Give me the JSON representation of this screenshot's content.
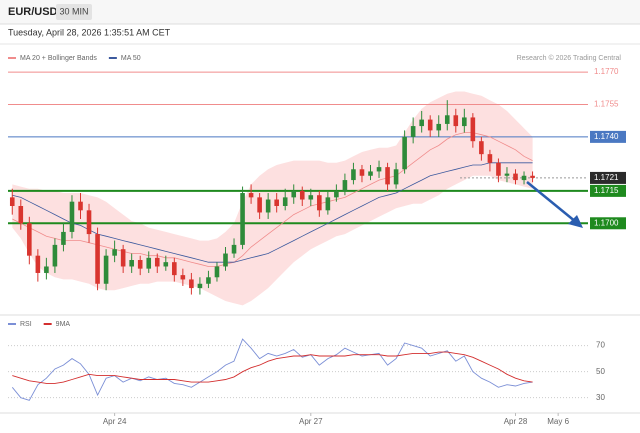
{
  "header": {
    "symbol": "EUR/USD",
    "timeframe": "30 MIN",
    "timestamp": "Tuesday, April 28, 2026 1:35:51 AM CET"
  },
  "chart_data": [
    {
      "type": "candlestick",
      "credit": "Research © 2026 Trading Central",
      "up_color": "#2e8b3a",
      "down_color": "#d9352f",
      "xlim": [
        -0.5,
        67.5
      ],
      "ylim": [
        1.1658,
        1.1783
      ],
      "open": [
        1.1712,
        1.1708,
        1.17,
        1.1685,
        1.1677,
        1.168,
        1.169,
        1.1696,
        1.171,
        1.1706,
        1.1695,
        1.1672,
        1.1685,
        1.1688,
        1.168,
        1.1683,
        1.1679,
        1.1684,
        1.168,
        1.1682,
        1.1676,
        1.1674,
        1.167,
        1.1672,
        1.1675,
        1.168,
        1.1686,
        1.169,
        1.1714,
        1.1712,
        1.1705,
        1.1711,
        1.1708,
        1.1712,
        1.1715,
        1.1711,
        1.1713,
        1.1706,
        1.1712,
        1.1715,
        1.172,
        1.1725,
        1.1722,
        1.1724,
        1.1726,
        1.1718,
        1.1725,
        1.174,
        1.1745,
        1.1748,
        1.1743,
        1.1746,
        1.175,
        1.1745,
        1.1749,
        1.1738,
        1.1732,
        1.1728,
        1.1722,
        1.1723,
        1.172,
        1.1722
      ],
      "high": [
        1.1716,
        1.1711,
        1.1703,
        1.1688,
        1.1684,
        1.1693,
        1.17,
        1.1713,
        1.1714,
        1.1709,
        1.1698,
        1.1688,
        1.1692,
        1.169,
        1.1686,
        1.1685,
        1.1687,
        1.1686,
        1.1685,
        1.1684,
        1.1679,
        1.1677,
        1.1675,
        1.1678,
        1.1682,
        1.1689,
        1.1693,
        1.1717,
        1.1718,
        1.1714,
        1.1714,
        1.1714,
        1.1716,
        1.1718,
        1.1717,
        1.1716,
        1.1715,
        1.1715,
        1.1718,
        1.1723,
        1.1728,
        1.1727,
        1.1727,
        1.1729,
        1.1728,
        1.1728,
        1.1743,
        1.1749,
        1.1752,
        1.175,
        1.175,
        1.1757,
        1.1753,
        1.1753,
        1.1751,
        1.174,
        1.1734,
        1.173,
        1.1726,
        1.1725,
        1.1724,
        1.1724
      ],
      "low": [
        1.1704,
        1.1697,
        1.1681,
        1.1673,
        1.1674,
        1.1677,
        1.1687,
        1.1693,
        1.1702,
        1.1691,
        1.1669,
        1.1669,
        1.1682,
        1.1677,
        1.1677,
        1.1676,
        1.1677,
        1.1677,
        1.1678,
        1.1673,
        1.1671,
        1.1667,
        1.1667,
        1.167,
        1.1673,
        1.1678,
        1.1684,
        1.1688,
        1.1709,
        1.1702,
        1.1702,
        1.1705,
        1.1706,
        1.1709,
        1.1708,
        1.1708,
        1.1703,
        1.1704,
        1.171,
        1.1713,
        1.1718,
        1.1719,
        1.172,
        1.1721,
        1.1715,
        1.1716,
        1.1723,
        1.1737,
        1.1742,
        1.174,
        1.174,
        1.1743,
        1.1742,
        1.1742,
        1.1735,
        1.1729,
        1.1724,
        1.1719,
        1.1719,
        1.1718,
        1.1718,
        1.1719
      ],
      "close": [
        1.1708,
        1.17,
        1.1685,
        1.1677,
        1.168,
        1.169,
        1.1696,
        1.171,
        1.1706,
        1.1695,
        1.1672,
        1.1685,
        1.1688,
        1.168,
        1.1683,
        1.1679,
        1.1684,
        1.168,
        1.1682,
        1.1676,
        1.1674,
        1.167,
        1.1672,
        1.1675,
        1.168,
        1.1686,
        1.169,
        1.1714,
        1.1712,
        1.1705,
        1.1711,
        1.1708,
        1.1712,
        1.1715,
        1.1711,
        1.1713,
        1.1706,
        1.1712,
        1.1715,
        1.172,
        1.1725,
        1.1722,
        1.1724,
        1.1726,
        1.1718,
        1.1725,
        1.174,
        1.1745,
        1.1748,
        1.1743,
        1.1746,
        1.175,
        1.1745,
        1.1749,
        1.1738,
        1.1732,
        1.1728,
        1.1722,
        1.1723,
        1.172,
        1.1722,
        1.1721
      ],
      "overlays": [
        {
          "name": "MA 20 + Bollinger Bands",
          "color": "#f08c8c",
          "band_color": "#fde0e0",
          "values": [
            1.1702,
            1.17,
            1.1698,
            1.1696,
            1.1694,
            1.1693,
            1.1692,
            1.1692,
            1.1692,
            1.1691,
            1.169,
            1.1689,
            1.1688,
            1.1687,
            1.1686,
            1.1686,
            1.1685,
            1.1685,
            1.1684,
            1.1684,
            1.1683,
            1.1682,
            1.1681,
            1.168,
            1.168,
            1.1681,
            1.1682,
            1.1685,
            1.1689,
            1.1692,
            1.1695,
            1.1698,
            1.1701,
            1.1704,
            1.1706,
            1.1708,
            1.1709,
            1.171,
            1.1711,
            1.1712,
            1.1714,
            1.1716,
            1.1718,
            1.172,
            1.1721,
            1.1722,
            1.1725,
            1.1728,
            1.1731,
            1.1734,
            1.1736,
            1.1739,
            1.1741,
            1.1742,
            1.1742,
            1.1741,
            1.174,
            1.1738,
            1.1736,
            1.1734,
            1.1731,
            1.1729
          ],
          "upper": [
            1.1718,
            1.1717,
            1.1716,
            1.1716,
            1.1715,
            1.1715,
            1.1714,
            1.1714,
            1.1714,
            1.1713,
            1.1712,
            1.171,
            1.1707,
            1.1704,
            1.1701,
            1.17,
            1.1698,
            1.1697,
            1.1696,
            1.1695,
            1.1694,
            1.1693,
            1.1692,
            1.1692,
            1.1693,
            1.1696,
            1.17,
            1.171,
            1.1718,
            1.1722,
            1.1725,
            1.1727,
            1.1728,
            1.1729,
            1.1729,
            1.1729,
            1.1729,
            1.1728,
            1.1728,
            1.1729,
            1.1731,
            1.1733,
            1.1734,
            1.1735,
            1.1735,
            1.1736,
            1.1742,
            1.1748,
            1.1753,
            1.1756,
            1.1758,
            1.176,
            1.1761,
            1.1761,
            1.176,
            1.1759,
            1.1757,
            1.1755,
            1.1752,
            1.1748,
            1.1744,
            1.174
          ],
          "lower": [
            1.1698,
            1.1693,
            1.1686,
            1.168,
            1.1677,
            1.1675,
            1.1674,
            1.1674,
            1.1673,
            1.1672,
            1.167,
            1.1669,
            1.1669,
            1.167,
            1.1671,
            1.1672,
            1.1672,
            1.1673,
            1.1673,
            1.1673,
            1.1672,
            1.1671,
            1.167,
            1.1668,
            1.1666,
            1.1664,
            1.1663,
            1.1662,
            1.1664,
            1.1667,
            1.167,
            1.1674,
            1.1678,
            1.1682,
            1.1685,
            1.1688,
            1.169,
            1.1692,
            1.1694,
            1.1695,
            1.1697,
            1.1699,
            1.1701,
            1.1703,
            1.1705,
            1.1707,
            1.1708,
            1.1709,
            1.1709,
            1.1711,
            1.1713,
            1.1716,
            1.1718,
            1.172,
            1.1722,
            1.1722,
            1.1722,
            1.172,
            1.1719,
            1.1718,
            1.1717,
            1.1716
          ]
        },
        {
          "name": "MA 50",
          "color": "#3d5a9e",
          "values": [
            1.1713,
            1.1712,
            1.171,
            1.1708,
            1.1706,
            1.1704,
            1.1702,
            1.17,
            1.1699,
            1.1697,
            1.1695,
            1.1694,
            1.1693,
            1.1692,
            1.1691,
            1.169,
            1.1689,
            1.1688,
            1.1687,
            1.1686,
            1.1685,
            1.1684,
            1.1683,
            1.1682,
            1.1682,
            1.1682,
            1.1682,
            1.1683,
            1.1684,
            1.1685,
            1.1686,
            1.1688,
            1.169,
            1.1692,
            1.1694,
            1.1696,
            1.1698,
            1.17,
            1.1702,
            1.1704,
            1.1706,
            1.1708,
            1.171,
            1.1712,
            1.1713,
            1.1714,
            1.1716,
            1.1718,
            1.172,
            1.1722,
            1.1723,
            1.1724,
            1.1725,
            1.1726,
            1.1727,
            1.1727,
            1.1728,
            1.1728,
            1.1728,
            1.1728,
            1.1728,
            1.1728
          ]
        }
      ],
      "levels": [
        {
          "value": 1.177,
          "label": "1.1770",
          "color": "#f08c8c",
          "box": false,
          "dotted": false,
          "width": 1
        },
        {
          "value": 1.1755,
          "label": "1.1755",
          "color": "#f08c8c",
          "box": false,
          "dotted": false,
          "width": 1
        },
        {
          "value": 1.174,
          "label": "1.1740",
          "color": "#4a78c2",
          "box": true,
          "dotted": false,
          "width": 1
        },
        {
          "value": 1.1721,
          "label": "1.1721",
          "color": "#2b2b2b",
          "box": true,
          "dotted": true,
          "width": 1
        },
        {
          "value": 1.1715,
          "label": "1.1715",
          "color": "#1e8a1e",
          "box": true,
          "dotted": false,
          "width": 2
        },
        {
          "value": 1.17,
          "label": "1.1700",
          "color": "#1e8a1e",
          "box": true,
          "dotted": false,
          "width": 2
        }
      ]
    },
    {
      "type": "line",
      "xlim": [
        -0.5,
        67.5
      ],
      "ylim": [
        19,
        82
      ],
      "yticks": [
        30,
        50,
        70
      ],
      "grid": true,
      "xticks": [
        {
          "value": 12,
          "label": "Apr 24"
        },
        {
          "value": 35,
          "label": "Apr 27"
        },
        {
          "value": 59,
          "label": "Apr 28"
        },
        {
          "value": 64,
          "label": "May 6"
        }
      ],
      "series": [
        {
          "name": "RSI",
          "color": "#7b8fd6",
          "values": [
            38,
            30,
            28,
            40,
            45,
            52,
            55,
            60,
            56,
            48,
            32,
            45,
            47,
            42,
            45,
            43,
            46,
            44,
            45,
            41,
            40,
            38,
            42,
            46,
            50,
            55,
            58,
            75,
            68,
            60,
            64,
            62,
            64,
            67,
            61,
            63,
            55,
            60,
            63,
            68,
            65,
            62,
            63,
            64,
            55,
            60,
            72,
            70,
            68,
            62,
            64,
            66,
            58,
            62,
            50,
            45,
            42,
            38,
            40,
            39,
            41,
            42
          ]
        },
        {
          "name": "9MA",
          "color": "#d32f2f",
          "values": [
            47,
            45,
            43,
            42,
            41,
            41,
            42,
            44,
            46,
            48,
            47,
            47,
            47,
            46,
            45,
            44,
            44,
            44,
            44,
            44,
            43,
            42,
            42,
            42,
            43,
            44,
            46,
            50,
            53,
            55,
            58,
            60,
            61,
            62,
            62,
            63,
            62,
            62,
            62,
            62,
            63,
            63,
            63,
            63,
            62,
            62,
            63,
            64,
            64,
            64,
            65,
            65,
            64,
            63,
            61,
            58,
            55,
            52,
            48,
            45,
            43,
            42
          ]
        }
      ]
    }
  ]
}
